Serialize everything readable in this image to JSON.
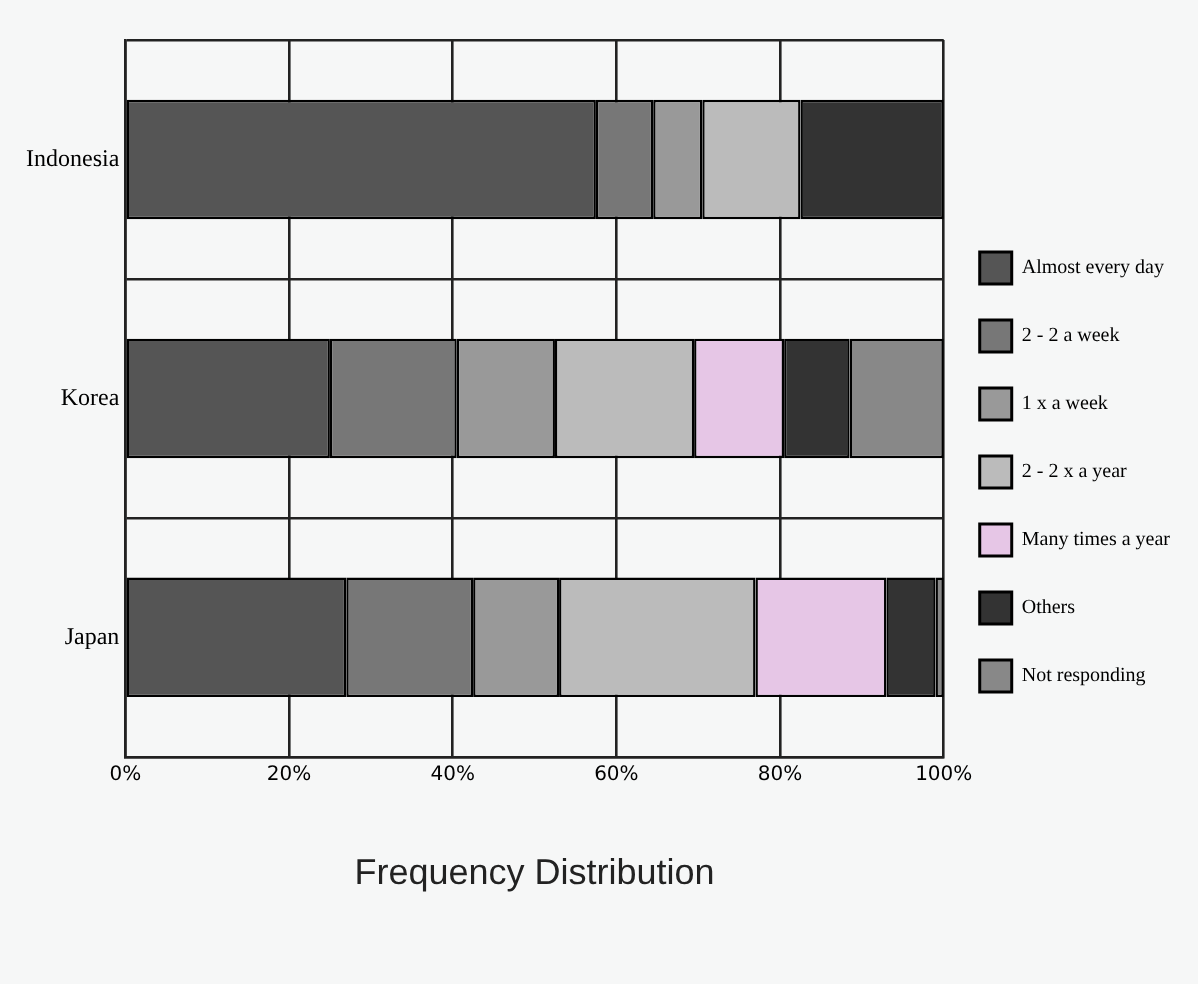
{
  "chart_data": {
    "type": "bar",
    "orientation": "horizontal",
    "stacked": true,
    "xlabel": "Frequency Distribution",
    "categories": [
      "Indonesia",
      "Korea",
      "Japan"
    ],
    "series": [
      {
        "name": "Almost every day",
        "color": "#555555",
        "values": [
          57.5,
          25,
          27
        ]
      },
      {
        "name": "2 - 2 a week",
        "color": "#777777",
        "values": [
          7,
          15.5,
          15.5
        ]
      },
      {
        "name": "1 x a week",
        "color": "#999999",
        "values": [
          6,
          12,
          10.5
        ]
      },
      {
        "name": "2 - 2 x a year",
        "color": "#bbbbbb",
        "values": [
          12,
          17,
          24
        ]
      },
      {
        "name": "Many times a year",
        "color": "#e6c6e6",
        "values": [
          0,
          11,
          16
        ]
      },
      {
        "name": "Others",
        "color": "#333333",
        "values": [
          17.5,
          8,
          6
        ]
      },
      {
        "name": "Not responding",
        "color": "#888888",
        "values": [
          0,
          11.5,
          1
        ]
      }
    ],
    "xlim": [
      0,
      100
    ],
    "xticks": [
      {
        "value": 0,
        "label": "0%"
      },
      {
        "value": 20,
        "label": "20%"
      },
      {
        "value": 40,
        "label": "40%"
      },
      {
        "value": 60,
        "label": "60%"
      },
      {
        "value": 80,
        "label": "80%"
      },
      {
        "value": 100,
        "label": "100%"
      }
    ],
    "grid": true,
    "legend": "right"
  }
}
